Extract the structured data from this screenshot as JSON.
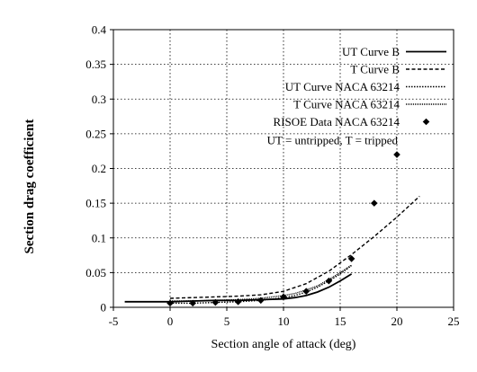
{
  "chart_data": {
    "type": "line",
    "title": "",
    "xlabel": "Section angle of attack (deg)",
    "ylabel": "Section drag coefficient",
    "xlim": [
      -5,
      25
    ],
    "ylim": [
      0,
      0.4
    ],
    "xticks": [
      "-5",
      "0",
      "5",
      "10",
      "15",
      "20",
      "25"
    ],
    "xtick_values": [
      -5,
      0,
      5,
      10,
      15,
      20,
      25
    ],
    "yticks": [
      "0",
      "0.05",
      "0.1",
      "0.15",
      "0.2",
      "0.25",
      "0.3",
      "0.35",
      "0.4"
    ],
    "ytick_values": [
      0,
      0.05,
      0.1,
      0.15,
      0.2,
      0.25,
      0.3,
      0.35,
      0.4
    ],
    "grid": true,
    "grid_style": "dotted",
    "legend_position": "top-right",
    "legend_note": "UT = untripped, T = tripped",
    "series": [
      {
        "name": "UT Curve B",
        "style": "solid",
        "x": [
          -4,
          -2,
          0,
          2,
          4,
          6,
          8,
          10,
          11,
          12,
          13,
          14,
          15,
          16
        ],
        "y": [
          0.008,
          0.008,
          0.008,
          0.009,
          0.01,
          0.01,
          0.011,
          0.012,
          0.014,
          0.017,
          0.022,
          0.029,
          0.038,
          0.048
        ]
      },
      {
        "name": "T Curve B",
        "style": "dashed",
        "x": [
          0,
          2,
          4,
          6,
          8,
          10,
          12,
          14,
          16,
          18,
          20,
          22
        ],
        "y": [
          0.013,
          0.014,
          0.015,
          0.016,
          0.018,
          0.023,
          0.034,
          0.052,
          0.076,
          0.102,
          0.13,
          0.16
        ]
      },
      {
        "name": "UT Curve NACA 63214",
        "style": "dotted",
        "x": [
          0,
          2,
          4,
          6,
          8,
          10,
          11,
          12,
          13,
          14,
          15,
          16
        ],
        "y": [
          0.006,
          0.006,
          0.007,
          0.008,
          0.01,
          0.014,
          0.017,
          0.022,
          0.029,
          0.038,
          0.048,
          0.06
        ]
      },
      {
        "name": "T Curve NACA 63214",
        "style": "dense-dotted",
        "x": [
          0,
          2,
          4,
          6,
          8,
          10,
          11,
          12,
          13,
          14,
          15,
          16
        ],
        "y": [
          0.009,
          0.009,
          0.01,
          0.011,
          0.013,
          0.017,
          0.02,
          0.025,
          0.031,
          0.04,
          0.05,
          0.061
        ]
      },
      {
        "name": "RISOE Data NACA 63214",
        "style": "markers",
        "marker": "diamond",
        "x": [
          0,
          2,
          4,
          6,
          8,
          10,
          12,
          14,
          16,
          18,
          20
        ],
        "y": [
          0.006,
          0.006,
          0.007,
          0.008,
          0.01,
          0.015,
          0.023,
          0.038,
          0.07,
          0.15,
          0.22
        ]
      }
    ]
  }
}
